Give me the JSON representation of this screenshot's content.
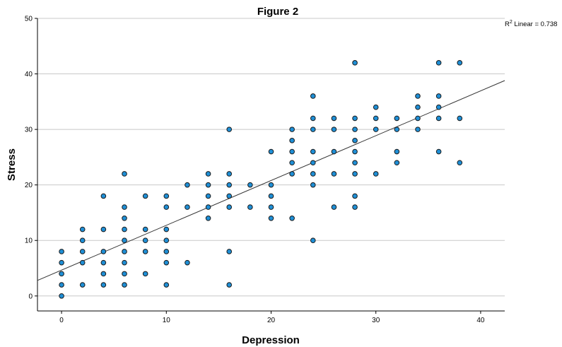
{
  "chart_data": {
    "type": "scatter",
    "title": "Figure 2",
    "xlabel": "Depression",
    "ylabel": "Stress",
    "xlim": [
      -2.3,
      42.3
    ],
    "ylim": [
      -2.7,
      50
    ],
    "xticks": [
      0,
      10,
      20,
      30,
      40
    ],
    "yticks": [
      0,
      10,
      20,
      30,
      40,
      50
    ],
    "grid": "horizontal",
    "fit_line": {
      "label_base": "R",
      "label_sup": "2",
      "label_rest": " Linear = 0.738",
      "x": [
        -2.3,
        42.3
      ],
      "y": [
        2.8,
        38.8
      ]
    },
    "points": [
      [
        0,
        0
      ],
      [
        0,
        2
      ],
      [
        0,
        4
      ],
      [
        0,
        6
      ],
      [
        0,
        8
      ],
      [
        2,
        2
      ],
      [
        2,
        6
      ],
      [
        2,
        8
      ],
      [
        2,
        10
      ],
      [
        2,
        12
      ],
      [
        4,
        2
      ],
      [
        4,
        4
      ],
      [
        4,
        6
      ],
      [
        4,
        8
      ],
      [
        4,
        12
      ],
      [
        4,
        18
      ],
      [
        6,
        2
      ],
      [
        6,
        4
      ],
      [
        6,
        6
      ],
      [
        6,
        8
      ],
      [
        6,
        10
      ],
      [
        6,
        12
      ],
      [
        6,
        14
      ],
      [
        6,
        16
      ],
      [
        6,
        22
      ],
      [
        8,
        4
      ],
      [
        8,
        8
      ],
      [
        8,
        10
      ],
      [
        8,
        12
      ],
      [
        8,
        18
      ],
      [
        10,
        2
      ],
      [
        10,
        6
      ],
      [
        10,
        8
      ],
      [
        10,
        10
      ],
      [
        10,
        12
      ],
      [
        10,
        16
      ],
      [
        10,
        18
      ],
      [
        12,
        6
      ],
      [
        12,
        16
      ],
      [
        12,
        20
      ],
      [
        14,
        14
      ],
      [
        14,
        16
      ],
      [
        14,
        18
      ],
      [
        14,
        20
      ],
      [
        14,
        22
      ],
      [
        16,
        2
      ],
      [
        16,
        8
      ],
      [
        16,
        16
      ],
      [
        16,
        18
      ],
      [
        16,
        20
      ],
      [
        16,
        22
      ],
      [
        16,
        30
      ],
      [
        18,
        16
      ],
      [
        18,
        20
      ],
      [
        20,
        14
      ],
      [
        20,
        16
      ],
      [
        20,
        18
      ],
      [
        20,
        20
      ],
      [
        20,
        26
      ],
      [
        22,
        14
      ],
      [
        22,
        22
      ],
      [
        22,
        24
      ],
      [
        22,
        26
      ],
      [
        22,
        28
      ],
      [
        22,
        30
      ],
      [
        24,
        10
      ],
      [
        24,
        20
      ],
      [
        24,
        22
      ],
      [
        24,
        24
      ],
      [
        24,
        26
      ],
      [
        24,
        30
      ],
      [
        24,
        32
      ],
      [
        24,
        36
      ],
      [
        26,
        16
      ],
      [
        26,
        22
      ],
      [
        26,
        26
      ],
      [
        26,
        30
      ],
      [
        26,
        32
      ],
      [
        28,
        16
      ],
      [
        28,
        18
      ],
      [
        28,
        22
      ],
      [
        28,
        24
      ],
      [
        28,
        26
      ],
      [
        28,
        28
      ],
      [
        28,
        30
      ],
      [
        28,
        32
      ],
      [
        28,
        42
      ],
      [
        30,
        22
      ],
      [
        30,
        30
      ],
      [
        30,
        32
      ],
      [
        30,
        34
      ],
      [
        32,
        24
      ],
      [
        32,
        26
      ],
      [
        32,
        30
      ],
      [
        32,
        32
      ],
      [
        34,
        30
      ],
      [
        34,
        32
      ],
      [
        34,
        34
      ],
      [
        34,
        36
      ],
      [
        36,
        26
      ],
      [
        36,
        32
      ],
      [
        36,
        34
      ],
      [
        36,
        36
      ],
      [
        36,
        42
      ],
      [
        38,
        24
      ],
      [
        38,
        32
      ],
      [
        38,
        42
      ]
    ],
    "colors": {
      "point_fill": "#1f8fd6",
      "point_stroke": "#1a1a1a",
      "gridline": "#c8c8c8",
      "axis": "#000000",
      "fit_line": "#333333"
    }
  }
}
